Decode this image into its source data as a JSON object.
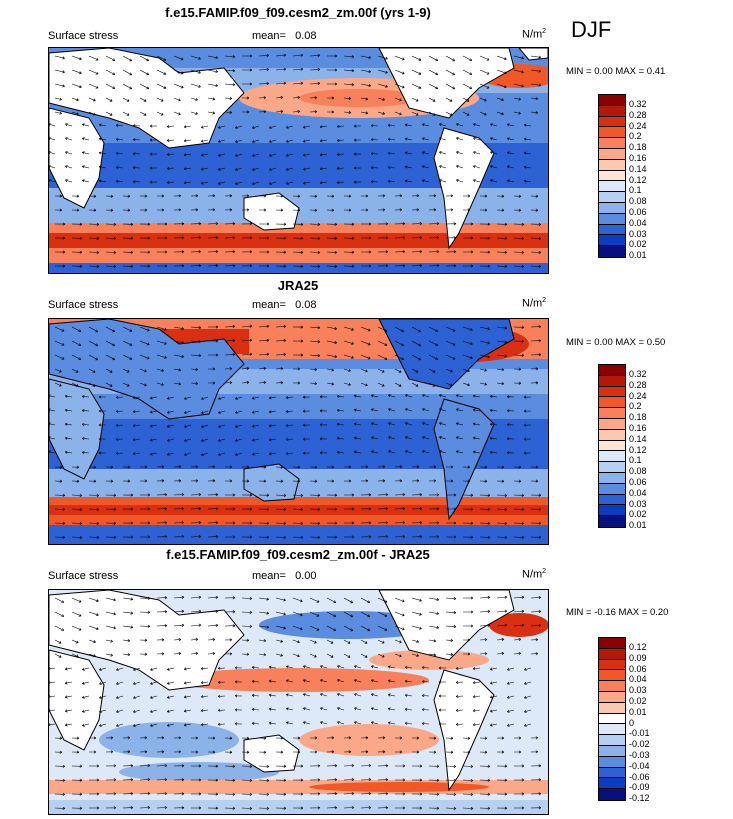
{
  "season": "DJF",
  "units_text": "N/m",
  "units_sup": "2",
  "panels": [
    {
      "title": "f.e15.FAMIP.f09_f09.cesm2_zm.00f (yrs 1-9)",
      "left_label": "Surface stress",
      "mean_label": "mean=",
      "mean_value": "0.08",
      "minmax": "MIN =  0.00 MAX =  0.41",
      "legend": [
        "0.32",
        "0.28",
        "0.24",
        "0.2",
        "0.18",
        "0.16",
        "0.14",
        "0.12",
        "0.1",
        "0.08",
        "0.06",
        "0.04",
        "0.03",
        "0.02",
        "0.01"
      ],
      "colors": [
        "#8b0000",
        "#b41808",
        "#d83010",
        "#f05828",
        "#f8805a",
        "#fba888",
        "#fcc8ae",
        "#fde4d4",
        "#dde9f8",
        "#b6d0f2",
        "#8cb2ea",
        "#5a8ce0",
        "#2c62d4",
        "#0c3cc0",
        "#08107e"
      ]
    },
    {
      "title": "JRA25",
      "left_label": "Surface stress",
      "mean_label": "mean=",
      "mean_value": "0.08",
      "minmax": "MIN =  0.00 MAX =  0.50",
      "legend": [
        "0.32",
        "0.28",
        "0.24",
        "0.2",
        "0.18",
        "0.16",
        "0.14",
        "0.12",
        "0.1",
        "0.08",
        "0.06",
        "0.04",
        "0.03",
        "0.02",
        "0.01"
      ],
      "colors": [
        "#8b0000",
        "#b41808",
        "#d83010",
        "#f05828",
        "#f8805a",
        "#fba888",
        "#fcc8ae",
        "#fde4d4",
        "#dde9f8",
        "#b6d0f2",
        "#8cb2ea",
        "#5a8ce0",
        "#2c62d4",
        "#0c3cc0",
        "#08107e"
      ]
    },
    {
      "title": "f.e15.FAMIP.f09_f09.cesm2_zm.00f - JRA25",
      "left_label": "Surface stress",
      "mean_label": "mean=",
      "mean_value": "0.00",
      "minmax": "MIN = -0.16 MAX =  0.20",
      "legend": [
        "0.12",
        "0.09",
        "0.06",
        "0.04",
        "0.03",
        "0.02",
        "0.01",
        "0",
        "-0.01",
        "-0.02",
        "-0.03",
        "-0.04",
        "-0.06",
        "-0.09",
        "-0.12"
      ],
      "colors": [
        "#8b0000",
        "#b41808",
        "#d83010",
        "#f05828",
        "#f8805a",
        "#fba888",
        "#fcc8ae",
        "#ffffff",
        "#dde9f8",
        "#b6d0f2",
        "#8cb2ea",
        "#5a8ce0",
        "#2c62d4",
        "#0c3cc0",
        "#08107e"
      ]
    }
  ]
}
